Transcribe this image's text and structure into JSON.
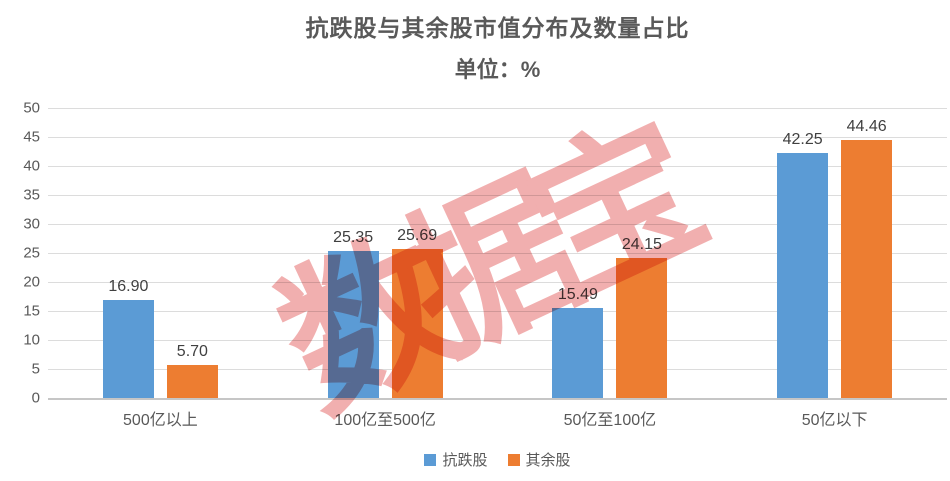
{
  "chart_data": {
    "type": "bar",
    "title": "抗跌股与其余股市值分布及数量占比",
    "subtitle": "单位：%",
    "categories": [
      "500亿以上",
      "100亿至500亿",
      "50亿至100亿",
      "50亿以下"
    ],
    "series": [
      {
        "name": "抗跌股",
        "color": "#5B9BD5",
        "values": [
          16.9,
          25.35,
          15.49,
          42.25
        ]
      },
      {
        "name": "其余股",
        "color": "#ED7D31",
        "values": [
          5.7,
          25.69,
          24.15,
          44.46
        ]
      }
    ],
    "value_labels": [
      [
        "16.90",
        "25.35",
        "15.49",
        "42.25"
      ],
      [
        "5.70",
        "25.69",
        "24.15",
        "44.46"
      ]
    ],
    "ylim": [
      0,
      50
    ],
    "yticks": [
      0,
      5,
      10,
      15,
      20,
      25,
      30,
      35,
      40,
      45,
      50
    ],
    "grid": true,
    "legend_position": "bottom"
  },
  "watermark": {
    "text": "数据宝",
    "color": "#E25757"
  },
  "style_colors": {
    "title": "#595959",
    "tick_label": "#595959",
    "value_label": "#404040",
    "gridline": "#dcdcdc",
    "axis_line": "#c6c6c6"
  }
}
